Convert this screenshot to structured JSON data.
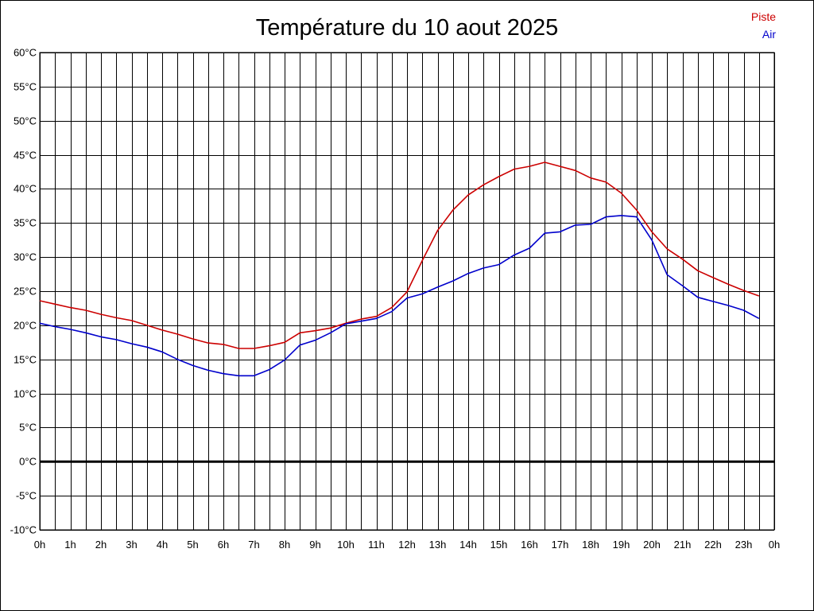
{
  "chart_data": {
    "type": "line",
    "title": "Température du 10 aout 2025",
    "xlabel": "",
    "ylabel": "",
    "x_ticks": [
      "0h",
      "1h",
      "2h",
      "3h",
      "4h",
      "5h",
      "6h",
      "7h",
      "8h",
      "9h",
      "10h",
      "11h",
      "12h",
      "13h",
      "14h",
      "15h",
      "16h",
      "17h",
      "18h",
      "19h",
      "20h",
      "21h",
      "22h",
      "23h",
      "0h"
    ],
    "y_ticks": [
      "-10°C",
      "-5°C",
      "0°C",
      "5°C",
      "10°C",
      "15°C",
      "20°C",
      "25°C",
      "30°C",
      "35°C",
      "40°C",
      "45°C",
      "50°C",
      "55°C",
      "60°C"
    ],
    "xlim": [
      0,
      24
    ],
    "ylim": [
      -10,
      60
    ],
    "grid": true,
    "legend_position": "top-right",
    "zero_line": 0,
    "series": [
      {
        "name": "Piste",
        "color": "#cc0000",
        "x": [
          0,
          0.5,
          1,
          1.5,
          2,
          2.5,
          3,
          3.5,
          4,
          4.5,
          5,
          5.5,
          6,
          6.5,
          7,
          7.5,
          8,
          8.5,
          9,
          9.5,
          10,
          10.5,
          11,
          11.5,
          12,
          12.5,
          13,
          13.5,
          14,
          14.5,
          15,
          15.5,
          16,
          16.5,
          17,
          17.5,
          18,
          18.5,
          19,
          19.5,
          20,
          20.5,
          21,
          21.5,
          22,
          22.5,
          23,
          23.5
        ],
        "y": [
          23.6,
          23.1,
          22.6,
          22.2,
          21.6,
          21.1,
          20.7,
          20.0,
          19.3,
          18.7,
          18.0,
          17.4,
          17.2,
          16.6,
          16.6,
          17.0,
          17.5,
          18.9,
          19.2,
          19.6,
          20.3,
          20.9,
          21.3,
          22.6,
          24.9,
          29.5,
          33.9,
          36.9,
          39.1,
          40.6,
          41.8,
          42.9,
          43.3,
          43.9,
          43.3,
          42.7,
          41.6,
          41.0,
          39.4,
          36.9,
          33.7,
          31.2,
          29.7,
          28.0,
          27.0,
          26.0,
          25.1,
          24.3
        ]
      },
      {
        "name": "Air",
        "color": "#0000cc",
        "x": [
          0,
          0.5,
          1,
          1.5,
          2,
          2.5,
          3,
          3.5,
          4,
          4.5,
          5,
          5.5,
          6,
          6.5,
          7,
          7.5,
          8,
          8.5,
          9,
          9.5,
          10,
          10.5,
          11,
          11.5,
          12,
          12.5,
          13,
          13.5,
          14,
          14.5,
          15,
          15.5,
          16,
          16.5,
          17,
          17.5,
          18,
          18.5,
          19,
          19.5,
          20,
          20.5,
          21,
          21.5,
          22,
          22.5,
          23,
          23.5
        ],
        "y": [
          20.3,
          19.8,
          19.4,
          18.9,
          18.3,
          17.9,
          17.3,
          16.8,
          16.1,
          15.0,
          14.1,
          13.4,
          12.9,
          12.6,
          12.6,
          13.5,
          14.9,
          17.1,
          17.8,
          18.9,
          20.2,
          20.6,
          21.0,
          22.0,
          24.0,
          24.6,
          25.6,
          26.5,
          27.6,
          28.4,
          28.9,
          30.3,
          31.3,
          33.5,
          33.7,
          34.7,
          34.8,
          35.9,
          36.1,
          35.9,
          32.5,
          27.4,
          25.8,
          24.1,
          23.5,
          22.9,
          22.2,
          21.0
        ]
      }
    ]
  }
}
